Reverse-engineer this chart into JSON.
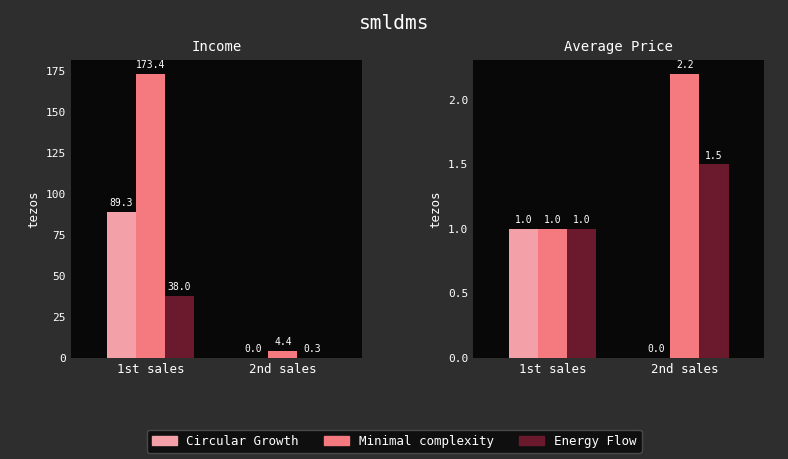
{
  "title": "smldms",
  "subplot1_title": "Income",
  "subplot2_title": "Average Price",
  "ylabel": "tezos",
  "categories": [
    "1st sales",
    "2nd sales"
  ],
  "series": [
    {
      "name": "Circular Growth",
      "color": "#f4a0a8",
      "income": [
        89.3,
        0.0
      ],
      "avg_price": [
        1.0,
        0.0
      ]
    },
    {
      "name": "Minimal complexity",
      "color": "#f47a80",
      "income": [
        173.4,
        4.4
      ],
      "avg_price": [
        1.0,
        2.2
      ]
    },
    {
      "name": "Energy Flow",
      "color": "#6b1a2e",
      "income": [
        38.0,
        0.3
      ],
      "avg_price": [
        1.0,
        1.5
      ]
    }
  ],
  "bg_color": "#2e2e2e",
  "plot_bg_color": "#080808",
  "text_color": "#ffffff",
  "font_name": "monospace",
  "bar_width": 0.22,
  "figsize": [
    7.88,
    4.59
  ],
  "dpi": 100
}
